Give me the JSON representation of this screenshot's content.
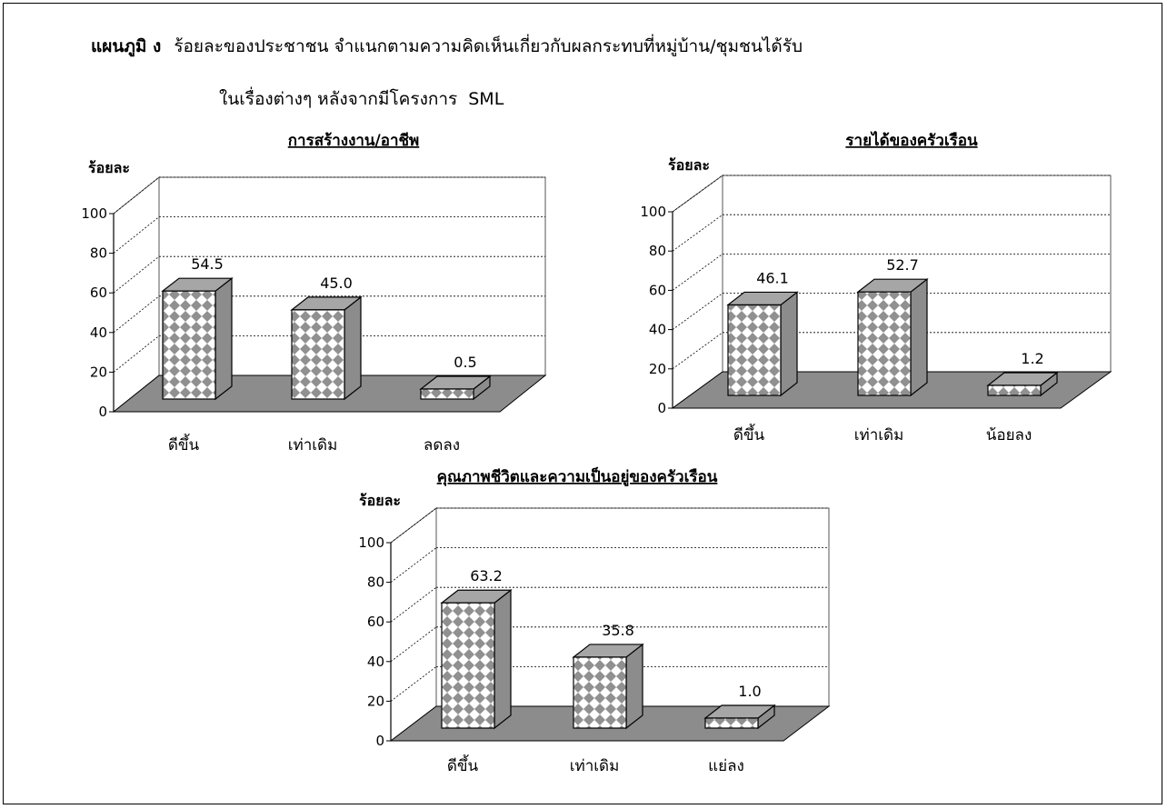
{
  "header": {
    "figure_label": "แผนภูมิ ง",
    "line1": "ร้อยละของประชาชน จำแนกตามความคิดเห็นเกี่ยวกับผลกระทบที่หมู่บ้าน/ชุมชนได้รับ",
    "line2_a": "ในเรื่องต่างๆ หลังจากมีโครงการ",
    "line2_b": "SML"
  },
  "chart_data": [
    {
      "type": "bar",
      "title": "การสร้างงาน/อาชีพ",
      "ylabel": "ร้อยละ",
      "ylim": [
        0,
        100
      ],
      "yticks": [
        0,
        20,
        40,
        60,
        80,
        100
      ],
      "categories": [
        "ดีขึ้น",
        "เท่าเดิม",
        "ลดลง"
      ],
      "values": [
        54.5,
        45.0,
        0.5
      ],
      "value_labels": [
        "54.5",
        "45.0",
        "0.5"
      ]
    },
    {
      "type": "bar",
      "title": "รายได้ของครัวเรือน",
      "ylabel": "ร้อยละ",
      "ylim": [
        0,
        100
      ],
      "yticks": [
        0,
        20,
        40,
        60,
        80,
        100
      ],
      "categories": [
        "ดีขึ้น",
        "เท่าเดิม",
        "น้อยลง"
      ],
      "values": [
        46.1,
        52.7,
        1.2
      ],
      "value_labels": [
        "46.1",
        "52.7",
        "1.2"
      ]
    },
    {
      "type": "bar",
      "title": "คุณภาพชีวิตและความเป็นอยู่ของครัวเรือน",
      "ylabel": "ร้อยละ",
      "ylim": [
        0,
        100
      ],
      "yticks": [
        0,
        20,
        40,
        60,
        80,
        100
      ],
      "categories": [
        "ดีขึ้น",
        "เท่าเดิม",
        "แย่ลง"
      ],
      "values": [
        63.2,
        35.8,
        1.0
      ],
      "value_labels": [
        "63.2",
        "35.8",
        "1.0"
      ]
    }
  ],
  "colors": {
    "floor": "#8c8c8c",
    "bar_side": "#8c8c8c",
    "bar_top": "#a6a6a6",
    "pattern_light": "#ffffff",
    "pattern_dark": "#909090"
  }
}
